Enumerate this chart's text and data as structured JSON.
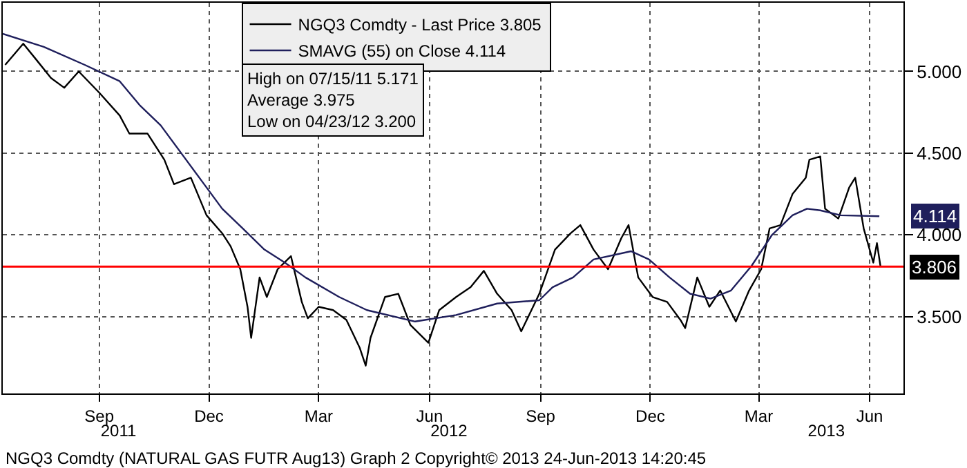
{
  "chart_data": {
    "type": "line",
    "x": [
      "2011-06-29",
      "2011-07-14",
      "2011-07-25",
      "2011-08-06",
      "2011-08-17",
      "2011-08-29",
      "2011-09-15",
      "2011-10-02",
      "2011-10-10",
      "2011-10-25",
      "2011-11-08",
      "2011-11-16",
      "2011-11-30",
      "2011-12-13",
      "2011-12-26",
      "2012-01-02",
      "2012-01-10",
      "2012-01-16",
      "2012-01-19",
      "2012-01-26",
      "2012-02-01",
      "2012-02-10",
      "2012-02-21",
      "2012-03-01",
      "2012-03-06",
      "2012-03-15",
      "2012-03-27",
      "2012-04-07",
      "2012-04-18",
      "2012-04-23",
      "2012-04-27",
      "2012-05-09",
      "2012-05-20",
      "2012-05-30",
      "2012-06-14",
      "2012-06-23",
      "2012-07-07",
      "2012-07-19",
      "2012-07-30",
      "2012-08-10",
      "2012-08-22",
      "2012-08-30",
      "2012-09-14",
      "2012-09-27",
      "2012-10-10",
      "2012-10-18",
      "2012-10-29",
      "2012-11-10",
      "2012-11-21",
      "2012-11-27",
      "2012-12-05",
      "2012-12-17",
      "2012-12-29",
      "2013-01-09",
      "2013-01-13",
      "2013-01-23",
      "2013-02-02",
      "2013-02-11",
      "2013-02-24",
      "2013-03-07",
      "2013-03-17",
      "2013-03-24",
      "2013-04-02",
      "2013-04-12",
      "2013-04-23",
      "2013-04-26",
      "2013-05-05",
      "2013-05-09",
      "2013-05-20",
      "2013-05-29",
      "2013-06-03",
      "2013-06-10",
      "2013-06-18",
      "2013-06-21",
      "2013-06-24"
    ],
    "series": [
      {
        "name": "NGQ3 Comdty - Last Price 3.805",
        "color": "#000000",
        "values": [
          5.04,
          5.17,
          5.07,
          4.96,
          4.9,
          5.0,
          4.87,
          4.73,
          4.62,
          4.62,
          4.46,
          4.31,
          4.35,
          4.12,
          4.01,
          3.93,
          3.79,
          3.56,
          3.37,
          3.74,
          3.62,
          3.79,
          3.87,
          3.59,
          3.49,
          3.56,
          3.54,
          3.48,
          3.31,
          3.2,
          3.37,
          3.62,
          3.64,
          3.45,
          3.34,
          3.54,
          3.62,
          3.68,
          3.78,
          3.64,
          3.54,
          3.41,
          3.64,
          3.91,
          4.01,
          4.06,
          3.91,
          3.79,
          3.98,
          4.06,
          3.74,
          3.62,
          3.59,
          3.48,
          3.43,
          3.74,
          3.56,
          3.66,
          3.47,
          3.66,
          3.79,
          4.04,
          4.06,
          4.25,
          4.35,
          4.46,
          4.48,
          4.16,
          4.1,
          4.29,
          4.35,
          4.04,
          3.83,
          3.95,
          3.805
        ]
      },
      {
        "name": "SMAVG (55) on Close 4.114",
        "color": "#1f1f5c",
        "x": [
          "2011-06-27",
          "2011-07-31",
          "2011-09-03",
          "2011-10-02",
          "2011-10-19",
          "2011-11-05",
          "2011-11-22",
          "2011-12-09",
          "2011-12-26",
          "2012-01-12",
          "2012-01-30",
          "2012-02-16",
          "2012-03-04",
          "2012-04-01",
          "2012-04-24",
          "2012-06-03",
          "2012-07-07",
          "2012-08-10",
          "2012-09-14",
          "2012-09-25",
          "2012-10-12",
          "2012-10-29",
          "2012-11-29",
          "2012-12-14",
          "2012-12-31",
          "2013-01-17",
          "2013-02-03",
          "2013-02-20",
          "2013-03-09",
          "2013-03-26",
          "2013-04-12",
          "2013-04-24",
          "2013-05-05",
          "2013-05-22",
          "2013-06-23"
        ],
        "values": [
          5.23,
          5.15,
          5.04,
          4.94,
          4.79,
          4.67,
          4.5,
          4.33,
          4.16,
          4.04,
          3.91,
          3.83,
          3.74,
          3.62,
          3.54,
          3.47,
          3.51,
          3.58,
          3.6,
          3.68,
          3.74,
          3.85,
          3.9,
          3.85,
          3.74,
          3.64,
          3.61,
          3.66,
          3.81,
          4.0,
          4.12,
          4.16,
          4.15,
          4.12,
          4.114
        ]
      }
    ],
    "xlim": [
      "2011-06-27",
      "2013-07-13"
    ],
    "xticks": [
      {
        "value": "2011-09-15",
        "label": "Sep"
      },
      {
        "value": "2011-12-15",
        "label": "Dec"
      },
      {
        "value": "2012-03-15",
        "label": "Mar"
      },
      {
        "value": "2012-06-15",
        "label": "Jun"
      },
      {
        "value": "2012-09-15",
        "label": "Sep"
      },
      {
        "value": "2012-12-15",
        "label": "Dec"
      },
      {
        "value": "2013-03-15",
        "label": "Mar"
      },
      {
        "value": "2013-06-15",
        "label": "Jun"
      }
    ],
    "x2lim": [
      "2011-06-27",
      "2013-07-13"
    ],
    "x2ticks": [
      {
        "value": "2011-10-01",
        "label": "2011"
      },
      {
        "value": "2012-07-01",
        "label": "2012"
      },
      {
        "value": "2013-05-10",
        "label": "2013"
      }
    ],
    "ylim": [
      3.03,
      5.42
    ],
    "yticks": [
      {
        "value": 3.5,
        "label": "3.500"
      },
      {
        "value": 4.0,
        "label": "4.000"
      },
      {
        "value": 4.5,
        "label": "4.500"
      },
      {
        "value": 5.0,
        "label": "5.000"
      }
    ],
    "ref_lines": [
      {
        "axis": "y",
        "value": 3.806,
        "label": "3.806",
        "color": "#ff0000"
      }
    ],
    "annotations": [
      "High on 07/15/11 5.171",
      "Average 3.975",
      "Low on 04/23/12 3.200",
      {
        "text": "4.114",
        "x": "2013-06-23",
        "y": 4.114
      },
      "NGQ3 Comdty (NATURAL GAS FUTR Aug13) Graph 2 Copyright© 2013 24-Jun-2013 14:20:45"
    ],
    "grid": true,
    "legend": "top",
    "marker": "none",
    "line_style": "solid"
  }
}
